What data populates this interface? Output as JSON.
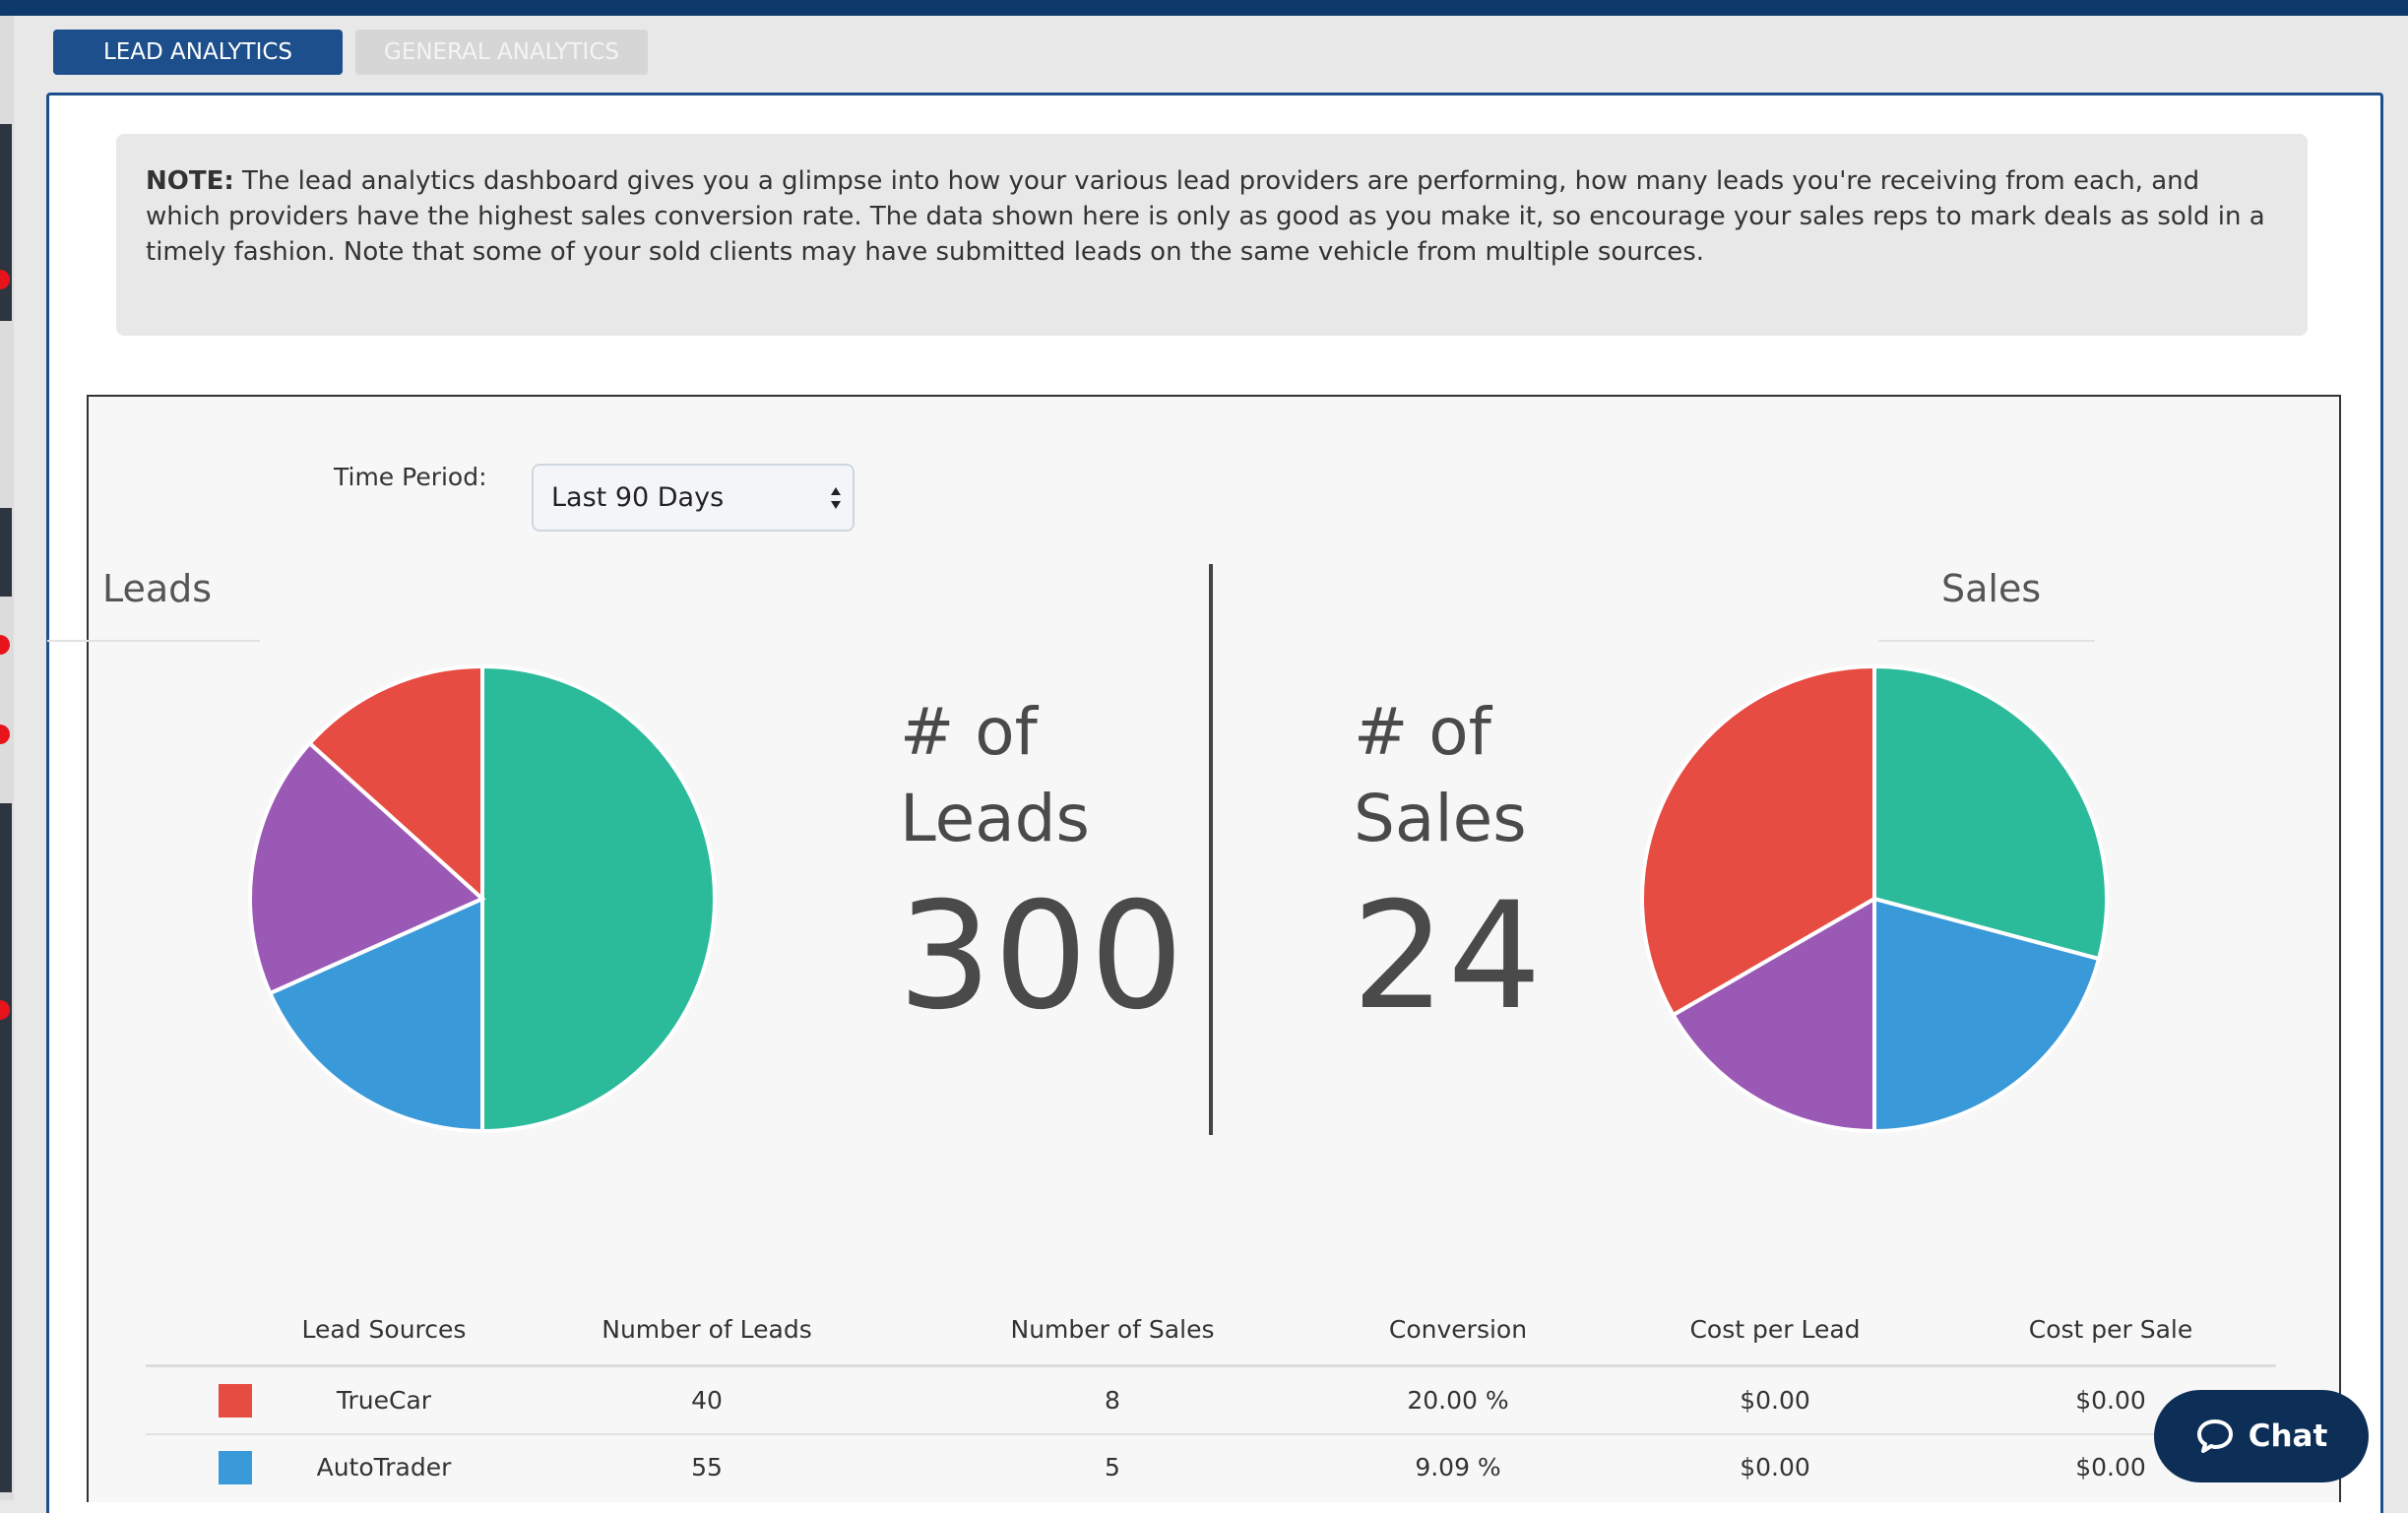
{
  "tabs": [
    {
      "label": "LEAD ANALYTICS",
      "active": true
    },
    {
      "label": "GENERAL ANALYTICS",
      "active": false
    }
  ],
  "note": {
    "prefix": "NOTE:",
    "text": "The lead analytics dashboard gives you a glimpse into how your various lead providers are performing, how many leads you're receiving from each, and which providers have the highest sales conversion rate. The data shown here is only as good as you make it, so encourage your sales reps to mark deals as sold in a timely fashion. Note that some of your sold clients may have submitted leads on the same vehicle from multiple sources."
  },
  "time_period": {
    "label": "Time Period:",
    "selected": "Last 90 Days"
  },
  "leads": {
    "title": "Leads",
    "stat_label_1": "# of",
    "stat_label_2": "Leads",
    "count": "300"
  },
  "sales": {
    "title": "Sales",
    "stat_label_1": "# of",
    "stat_label_2": "Sales",
    "count": "24"
  },
  "colors": {
    "green": "#2bbb9b",
    "blue": "#3a99d8",
    "purple": "#9b59b6",
    "red": "#e74c43",
    "accent": "#1c4f8c",
    "chat": "#0d2f57"
  },
  "chart_data": [
    {
      "type": "pie",
      "title": "Leads",
      "slices": [
        {
          "color": "#2bbb9b",
          "value": 150
        },
        {
          "color": "#3a99d8",
          "value": 55
        },
        {
          "color": "#9b59b6",
          "value": 55
        },
        {
          "color": "#e74c43",
          "value": 40
        }
      ]
    },
    {
      "type": "pie",
      "title": "Sales",
      "slices": [
        {
          "color": "#2bbb9b",
          "value": 7
        },
        {
          "color": "#3a99d8",
          "value": 5
        },
        {
          "color": "#9b59b6",
          "value": 4
        },
        {
          "color": "#e74c43",
          "value": 8
        }
      ]
    }
  ],
  "table": {
    "headers": [
      "Lead Sources",
      "Number of Leads",
      "Number of Sales",
      "Conversion",
      "Cost per Lead",
      "Cost per Sale"
    ],
    "rows": [
      {
        "color": "#e74c43",
        "source": "TrueCar",
        "leads": "40",
        "sales": "8",
        "conversion": "20.00 %",
        "cost_per_lead": "$0.00",
        "cost_per_sale": "$0.00"
      },
      {
        "color": "#3a99d8",
        "source": "AutoTrader",
        "leads": "55",
        "sales": "5",
        "conversion": "9.09 %",
        "cost_per_lead": "$0.00",
        "cost_per_sale": "$0.00"
      }
    ]
  },
  "chat": {
    "label": "Chat",
    "icon": "chat-bubble-icon"
  }
}
